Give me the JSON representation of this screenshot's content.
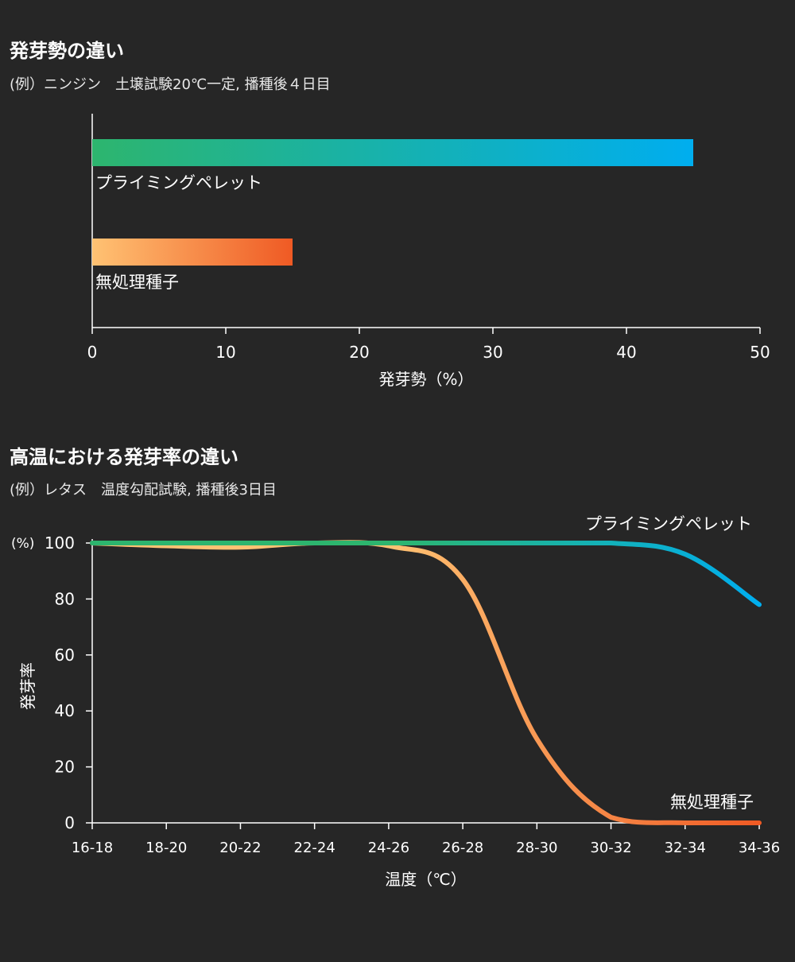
{
  "colors": {
    "background": "#262626",
    "priming_start": "#2db56e",
    "priming_end": "#00aeef",
    "untreated_start": "#ffc273",
    "untreated_end": "#ef5a24",
    "axis": "#ffffff"
  },
  "chart_data": [
    {
      "type": "bar",
      "orientation": "horizontal",
      "title": "発芽勢の違い",
      "subtitle": "(例）ニンジン　土壌試験20℃一定, 播種後４日目",
      "categories": [
        "プライミングペレット",
        "無処理種子"
      ],
      "values": [
        45,
        15
      ],
      "xlabel": "発芽勢（%）",
      "xlim": [
        0,
        50
      ],
      "xticks": [
        "0",
        "10",
        "20",
        "30",
        "40",
        "50"
      ],
      "grid": false
    },
    {
      "type": "line",
      "title": "高温における発芽率の違い",
      "subtitle": "(例）レタス　温度勾配試験, 播種後3日目",
      "x": [
        "16-18",
        "18-20",
        "20-22",
        "22-24",
        "24-26",
        "26-28",
        "28-30",
        "30-32",
        "32-34",
        "34-36"
      ],
      "series": [
        {
          "name": "プライミングペレット",
          "values": [
            100,
            100,
            100,
            100,
            100,
            100,
            100,
            100,
            96,
            78
          ]
        },
        {
          "name": "無処理種子",
          "values": [
            100,
            99,
            98.5,
            100,
            99,
            87,
            30,
            2,
            0,
            0
          ]
        }
      ],
      "xlabel": "温度（℃）",
      "ylabel": "発芽率",
      "yunit": "(%)",
      "ylim": [
        0,
        100
      ],
      "yticks": [
        "0",
        "20",
        "40",
        "60",
        "80",
        "100"
      ],
      "grid": false
    }
  ]
}
